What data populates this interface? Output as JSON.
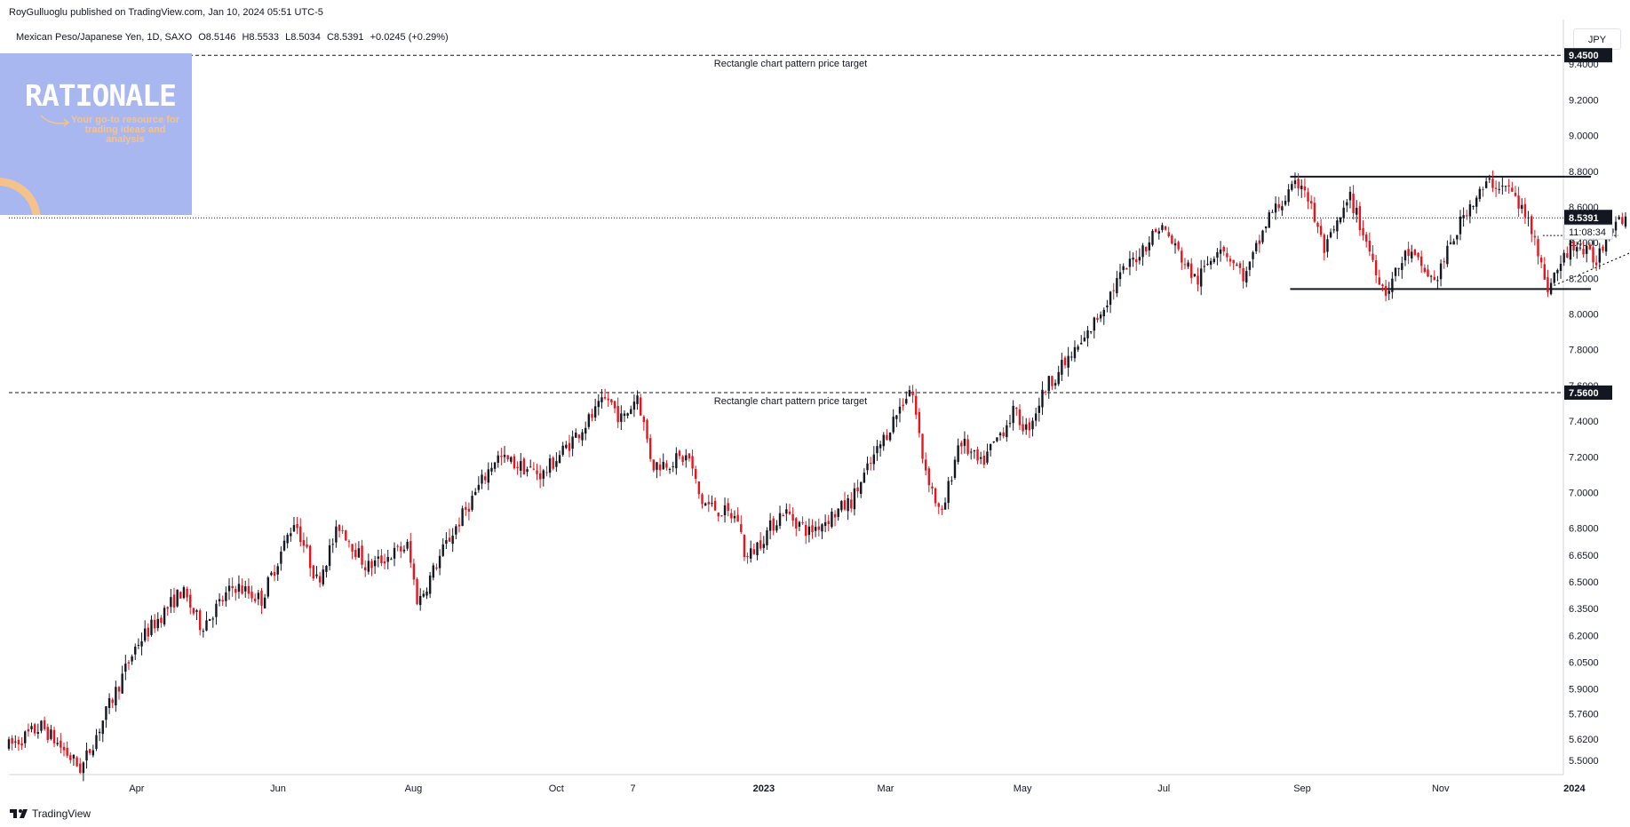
{
  "header": {
    "published": "RoyGulluoglu published on TradingView.com, Jan 10, 2024 05:51 UTC-5",
    "symbol": "Mexican Peso/Japanese Yen, 1D, SAXO",
    "open": "O8.5146",
    "high": "H8.5533",
    "low": "L8.5034",
    "close": "C8.5391",
    "change": "+0.0245 (+0.29%)",
    "currency_button": "JPY"
  },
  "logo": {
    "title": "RATIONALE",
    "tagline": "Your go-to resource for trading ideas and analysis"
  },
  "footer": {
    "brand": "TradingView"
  },
  "colors": {
    "up": "#131722",
    "down": "#e8141c",
    "axis_text": "#131722",
    "price_label_bg": "#131722"
  },
  "chart_data": {
    "type": "candlestick",
    "ylim": [
      5.42,
      9.65
    ],
    "y_ticks": [
      {
        "label": "9.4000",
        "v": 9.4
      },
      {
        "label": "9.2000",
        "v": 9.2
      },
      {
        "label": "9.0000",
        "v": 9.0
      },
      {
        "label": "8.8000",
        "v": 8.8
      },
      {
        "label": "8.6000",
        "v": 8.6
      },
      {
        "label": "8.4000",
        "v": 8.4
      },
      {
        "label": "8.2000",
        "v": 8.2
      },
      {
        "label": "8.0000",
        "v": 8.0
      },
      {
        "label": "7.8000",
        "v": 7.8
      },
      {
        "label": "7.6000",
        "v": 7.6
      },
      {
        "label": "7.4000",
        "v": 7.4
      },
      {
        "label": "7.2000",
        "v": 7.2
      },
      {
        "label": "7.0000",
        "v": 7.0
      },
      {
        "label": "6.8000",
        "v": 6.8
      },
      {
        "label": "6.6500",
        "v": 6.65
      },
      {
        "label": "6.5000",
        "v": 6.5
      },
      {
        "label": "6.3500",
        "v": 6.35
      },
      {
        "label": "6.2000",
        "v": 6.2
      },
      {
        "label": "6.0500",
        "v": 6.05
      },
      {
        "label": "5.9000",
        "v": 5.9
      },
      {
        "label": "5.7600",
        "v": 5.76
      },
      {
        "label": "5.6200",
        "v": 5.62
      },
      {
        "label": "5.5000",
        "v": 5.5
      }
    ],
    "x_ticks": [
      {
        "label": "Apr",
        "t": 0.085
      },
      {
        "label": "Jun",
        "t": 0.179
      },
      {
        "label": "Aug",
        "t": 0.269
      },
      {
        "label": "Oct",
        "t": 0.364
      },
      {
        "label": "7",
        "t": 0.415
      },
      {
        "label": "2023",
        "t": 0.502,
        "bold": true
      },
      {
        "label": "Mar",
        "t": 0.583
      },
      {
        "label": "May",
        "t": 0.674
      },
      {
        "label": "Jul",
        "t": 0.768
      },
      {
        "label": "Sep",
        "t": 0.86
      },
      {
        "label": "Nov",
        "t": 0.952
      },
      {
        "label": "2024",
        "t": 1.041,
        "bold": true
      }
    ],
    "price_path": [
      {
        "t": 0.0,
        "v": 5.58
      },
      {
        "t": 0.022,
        "v": 5.69
      },
      {
        "t": 0.048,
        "v": 5.45
      },
      {
        "t": 0.085,
        "v": 6.15
      },
      {
        "t": 0.115,
        "v": 6.45
      },
      {
        "t": 0.128,
        "v": 6.25
      },
      {
        "t": 0.15,
        "v": 6.48
      },
      {
        "t": 0.168,
        "v": 6.4
      },
      {
        "t": 0.19,
        "v": 6.85
      },
      {
        "t": 0.205,
        "v": 6.5
      },
      {
        "t": 0.22,
        "v": 6.82
      },
      {
        "t": 0.238,
        "v": 6.58
      },
      {
        "t": 0.265,
        "v": 6.7
      },
      {
        "t": 0.272,
        "v": 6.38
      },
      {
        "t": 0.29,
        "v": 6.7
      },
      {
        "t": 0.324,
        "v": 7.2
      },
      {
        "t": 0.355,
        "v": 7.1
      },
      {
        "t": 0.398,
        "v": 7.53
      },
      {
        "t": 0.408,
        "v": 7.4
      },
      {
        "t": 0.418,
        "v": 7.55
      },
      {
        "t": 0.428,
        "v": 7.15
      },
      {
        "t": 0.452,
        "v": 7.2
      },
      {
        "t": 0.46,
        "v": 6.95
      },
      {
        "t": 0.485,
        "v": 6.85
      },
      {
        "t": 0.49,
        "v": 6.62
      },
      {
        "t": 0.515,
        "v": 6.9
      },
      {
        "t": 0.532,
        "v": 6.78
      },
      {
        "t": 0.56,
        "v": 6.95
      },
      {
        "t": 0.6,
        "v": 7.6
      },
      {
        "t": 0.608,
        "v": 7.18
      },
      {
        "t": 0.62,
        "v": 6.85
      },
      {
        "t": 0.632,
        "v": 7.3
      },
      {
        "t": 0.646,
        "v": 7.15
      },
      {
        "t": 0.668,
        "v": 7.45
      },
      {
        "t": 0.677,
        "v": 7.35
      },
      {
        "t": 0.69,
        "v": 7.6
      },
      {
        "t": 0.715,
        "v": 7.85
      },
      {
        "t": 0.738,
        "v": 8.2
      },
      {
        "t": 0.766,
        "v": 8.5
      },
      {
        "t": 0.79,
        "v": 8.18
      },
      {
        "t": 0.805,
        "v": 8.4
      },
      {
        "t": 0.822,
        "v": 8.2
      },
      {
        "t": 0.838,
        "v": 8.55
      },
      {
        "t": 0.86,
        "v": 8.75
      },
      {
        "t": 0.875,
        "v": 8.35
      },
      {
        "t": 0.892,
        "v": 8.65
      },
      {
        "t": 0.915,
        "v": 8.12
      },
      {
        "t": 0.93,
        "v": 8.35
      },
      {
        "t": 0.948,
        "v": 8.18
      },
      {
        "t": 0.97,
        "v": 8.6
      },
      {
        "t": 0.985,
        "v": 8.74
      },
      {
        "t": 0.998,
        "v": 8.7
      },
      {
        "t": 1.015,
        "v": 8.45
      },
      {
        "t": 1.022,
        "v": 8.13
      },
      {
        "t": 1.04,
        "v": 8.4
      },
      {
        "t": 1.055,
        "v": 8.3
      },
      {
        "t": 1.068,
        "v": 8.55
      },
      {
        "t": 1.075,
        "v": 8.539
      }
    ],
    "targets": [
      {
        "v": 9.45,
        "label": "9.4500",
        "text": "Rectangle chart pattern price target"
      },
      {
        "v": 7.56,
        "label": "7.5600",
        "text": "Rectangle chart pattern price target"
      }
    ],
    "rectangle": {
      "top": 8.77,
      "bottom": 8.14,
      "t_start": 0.852,
      "t_end": 1.052
    },
    "last_price": {
      "v": 8.5391,
      "label": "8.5391",
      "countdown": "11:08:34"
    }
  }
}
